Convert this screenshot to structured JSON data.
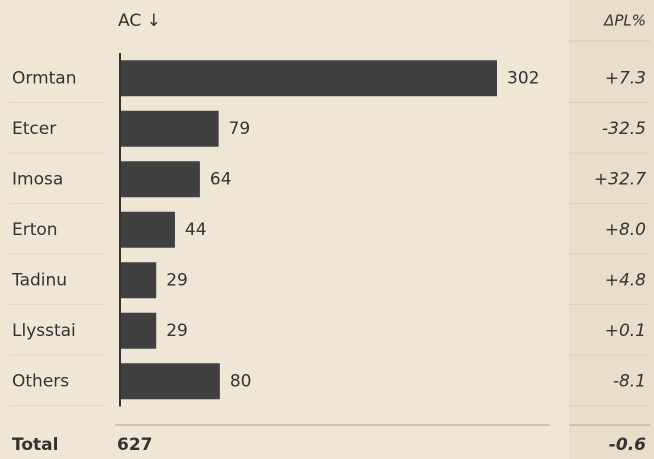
{
  "chart_data": {
    "type": "bar",
    "orientation": "horizontal",
    "value_header": "AC ↓",
    "categories": [
      "Ormtan",
      "Etcer",
      "Imosa",
      "Erton",
      "Tadinu",
      "Llysstai",
      "Others"
    ],
    "values": [
      302,
      79,
      64,
      44,
      29,
      29,
      80
    ],
    "color": "#404040",
    "delta": {
      "name": "ΔPL%",
      "values": [
        7.3,
        -32.5,
        32.7,
        8.0,
        4.8,
        0.1,
        -8.1
      ],
      "value_labels": [
        "+7.3",
        "-32.5",
        "+32.7",
        "+8.0",
        "+4.8",
        "+0.1",
        "-8.1"
      ],
      "positive_color": "#333333",
      "negative_color": "#e8201e"
    },
    "total": {
      "label": "Total",
      "value": 627,
      "delta": -0.6,
      "delta_label": "-0.6"
    }
  }
}
